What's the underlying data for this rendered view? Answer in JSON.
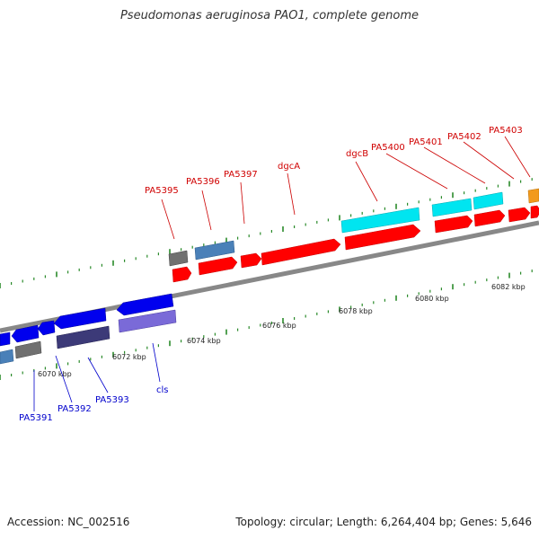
{
  "title": "Pseudomonas aeruginosa PAO1, complete genome",
  "footer": {
    "accession": "Accession: NC_002516",
    "summary": "Topology: circular; Length: 6,264,404 bp; Genes: 5,646"
  },
  "ticks": [
    "6070 kbp",
    "6072 kbp",
    "6074 kbp",
    "6076 kbp",
    "6078 kbp",
    "6080 kbp",
    "6082 kbp"
  ],
  "top_labels": [
    "PA5395",
    "PA5396",
    "PA5397",
    "dgcA",
    "dgcB",
    "PA5400",
    "PA5401",
    "PA5402",
    "PA5403"
  ],
  "bottom_labels": [
    "PA5391",
    "PA5392",
    "PA5393",
    "cls"
  ],
  "colors": {
    "forward": "#ff0000",
    "reverse": "#0000ff",
    "cyan": "#00e5f0",
    "steel": "#4a80b8",
    "gray": "#707070",
    "navy": "#3c3a78",
    "violet": "#7a6ad8",
    "orange": "#f29a1c",
    "tick": "#2a8a2a"
  }
}
